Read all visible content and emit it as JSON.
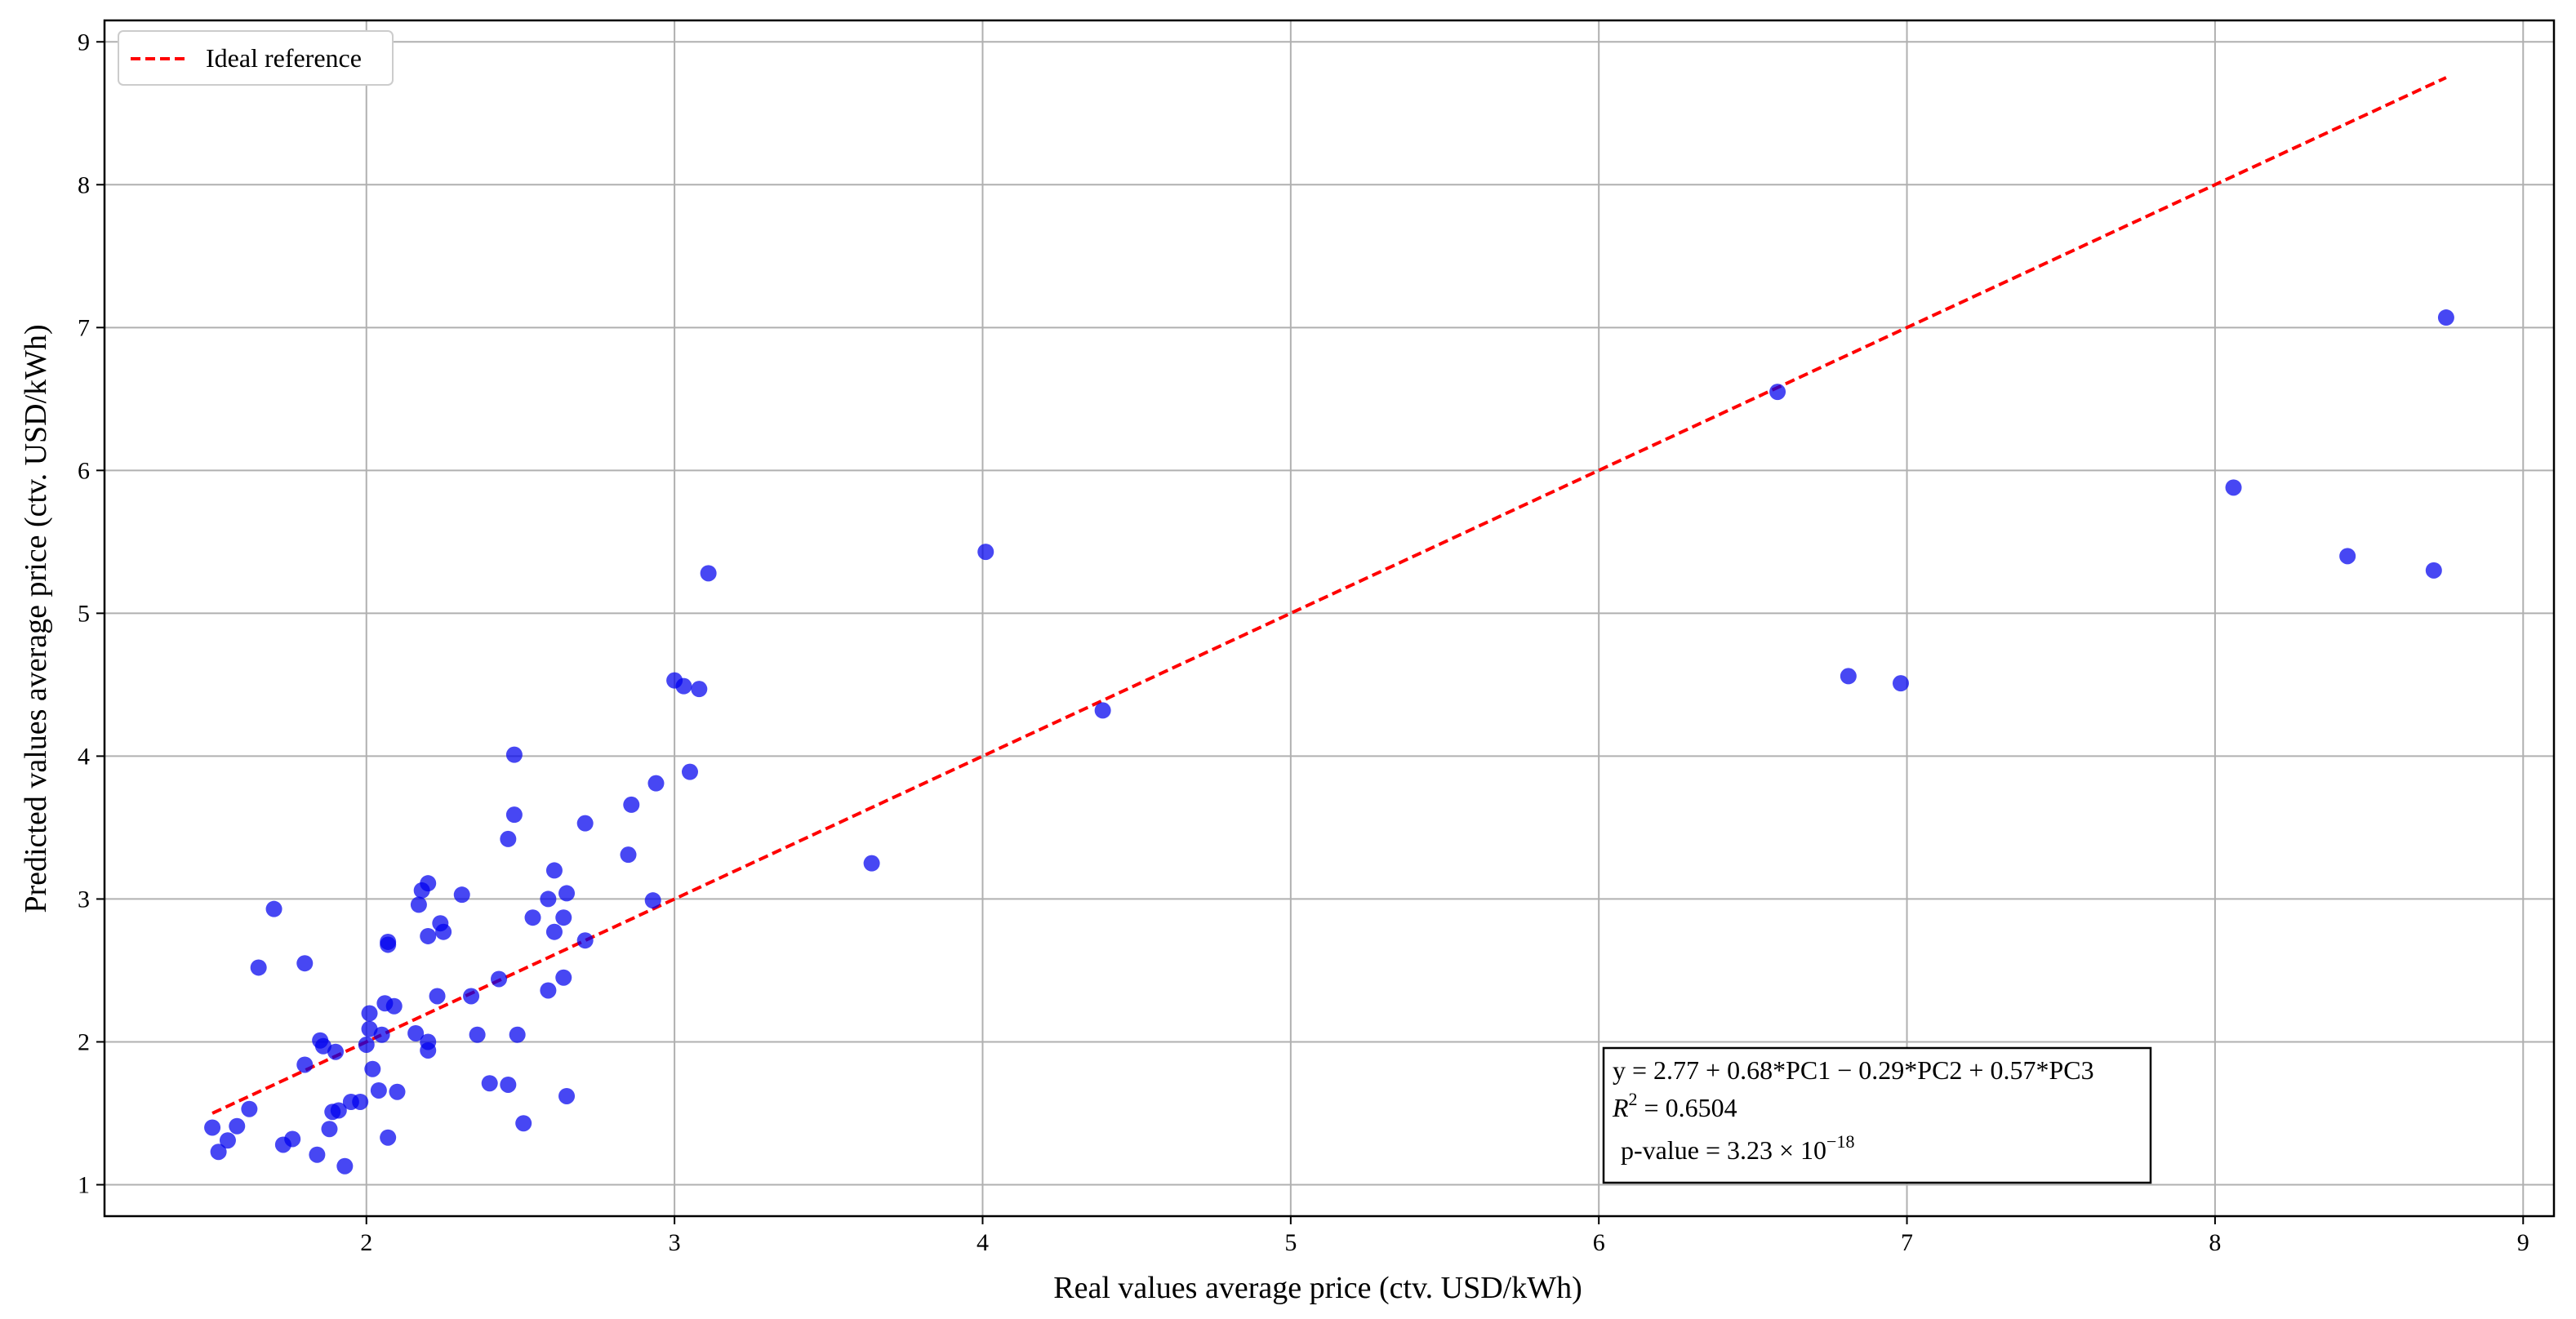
{
  "chart_data": {
    "type": "scatter",
    "xlabel": "Real values average price (ctv. USD/kWh)",
    "ylabel": "Predicted values average price (ctv. USD/kWh)",
    "xlim": [
      1.15,
      9.1
    ],
    "ylim": [
      0.78,
      9.15
    ],
    "xticks": [
      "2",
      "3",
      "4",
      "5",
      "6",
      "7",
      "8",
      "9"
    ],
    "yticks": [
      "1",
      "2",
      "3",
      "4",
      "5",
      "6",
      "7",
      "8",
      "9"
    ],
    "grid": true,
    "legend_position": "top-left",
    "point_color": "#0000ee",
    "reference_color": "#ff0000",
    "reference_line": {
      "name": "Ideal reference",
      "style": "dashed",
      "x": [
        1.5,
        8.75
      ],
      "y": [
        1.5,
        8.75
      ]
    },
    "annotation": {
      "equation": "y = 2.77 + 0.68*PC1 − 0.29*PC2 + 0.57*PC3",
      "r2_symbol": "R",
      "r2_superscript": "2",
      "r2_value": " = 0.6504",
      "pvalue_prefix": "p-value = 3.23 × 10",
      "pvalue_exponent": "−18"
    },
    "points": [
      {
        "x": 1.5,
        "y": 1.4
      },
      {
        "x": 1.52,
        "y": 1.23
      },
      {
        "x": 1.55,
        "y": 1.31
      },
      {
        "x": 1.58,
        "y": 1.41
      },
      {
        "x": 1.62,
        "y": 1.53
      },
      {
        "x": 1.65,
        "y": 2.52
      },
      {
        "x": 1.7,
        "y": 2.93
      },
      {
        "x": 1.73,
        "y": 1.28
      },
      {
        "x": 1.76,
        "y": 1.32
      },
      {
        "x": 1.8,
        "y": 2.55
      },
      {
        "x": 1.8,
        "y": 1.84
      },
      {
        "x": 1.84,
        "y": 1.21
      },
      {
        "x": 1.85,
        "y": 2.01
      },
      {
        "x": 1.86,
        "y": 1.97
      },
      {
        "x": 1.88,
        "y": 1.39
      },
      {
        "x": 1.89,
        "y": 1.51
      },
      {
        "x": 1.9,
        "y": 1.93
      },
      {
        "x": 1.91,
        "y": 1.52
      },
      {
        "x": 1.93,
        "y": 1.13
      },
      {
        "x": 1.95,
        "y": 1.58
      },
      {
        "x": 1.98,
        "y": 1.58
      },
      {
        "x": 2.0,
        "y": 1.98
      },
      {
        "x": 2.01,
        "y": 2.2
      },
      {
        "x": 2.01,
        "y": 2.09
      },
      {
        "x": 2.02,
        "y": 1.81
      },
      {
        "x": 2.04,
        "y": 1.66
      },
      {
        "x": 2.05,
        "y": 2.05
      },
      {
        "x": 2.06,
        "y": 2.27
      },
      {
        "x": 2.07,
        "y": 2.7
      },
      {
        "x": 2.07,
        "y": 2.68
      },
      {
        "x": 2.07,
        "y": 1.33
      },
      {
        "x": 2.09,
        "y": 2.25
      },
      {
        "x": 2.1,
        "y": 1.65
      },
      {
        "x": 2.16,
        "y": 2.06
      },
      {
        "x": 2.17,
        "y": 2.96
      },
      {
        "x": 2.18,
        "y": 3.06
      },
      {
        "x": 2.2,
        "y": 3.11
      },
      {
        "x": 2.2,
        "y": 2.74
      },
      {
        "x": 2.2,
        "y": 2.0
      },
      {
        "x": 2.2,
        "y": 1.94
      },
      {
        "x": 2.23,
        "y": 2.32
      },
      {
        "x": 2.24,
        "y": 2.83
      },
      {
        "x": 2.25,
        "y": 2.77
      },
      {
        "x": 2.31,
        "y": 3.03
      },
      {
        "x": 2.34,
        "y": 2.32
      },
      {
        "x": 2.36,
        "y": 2.05
      },
      {
        "x": 2.4,
        "y": 1.71
      },
      {
        "x": 2.43,
        "y": 2.44
      },
      {
        "x": 2.46,
        "y": 3.42
      },
      {
        "x": 2.46,
        "y": 1.7
      },
      {
        "x": 2.48,
        "y": 4.01
      },
      {
        "x": 2.48,
        "y": 3.59
      },
      {
        "x": 2.49,
        "y": 2.05
      },
      {
        "x": 2.51,
        "y": 1.43
      },
      {
        "x": 2.54,
        "y": 2.87
      },
      {
        "x": 2.59,
        "y": 3.0
      },
      {
        "x": 2.59,
        "y": 2.36
      },
      {
        "x": 2.61,
        "y": 3.2
      },
      {
        "x": 2.61,
        "y": 2.77
      },
      {
        "x": 2.64,
        "y": 2.87
      },
      {
        "x": 2.64,
        "y": 2.45
      },
      {
        "x": 2.65,
        "y": 1.62
      },
      {
        "x": 2.65,
        "y": 3.04
      },
      {
        "x": 2.71,
        "y": 3.53
      },
      {
        "x": 2.71,
        "y": 2.71
      },
      {
        "x": 2.85,
        "y": 3.31
      },
      {
        "x": 2.86,
        "y": 3.66
      },
      {
        "x": 2.93,
        "y": 2.99
      },
      {
        "x": 2.94,
        "y": 3.81
      },
      {
        "x": 3.0,
        "y": 4.53
      },
      {
        "x": 3.03,
        "y": 4.49
      },
      {
        "x": 3.05,
        "y": 3.89
      },
      {
        "x": 3.08,
        "y": 4.47
      },
      {
        "x": 3.11,
        "y": 5.28
      },
      {
        "x": 3.64,
        "y": 3.25
      },
      {
        "x": 4.01,
        "y": 5.43
      },
      {
        "x": 4.39,
        "y": 4.32
      },
      {
        "x": 6.58,
        "y": 6.55
      },
      {
        "x": 6.81,
        "y": 4.56
      },
      {
        "x": 6.98,
        "y": 4.51
      },
      {
        "x": 8.06,
        "y": 5.88
      },
      {
        "x": 8.43,
        "y": 5.4
      },
      {
        "x": 8.71,
        "y": 5.3
      },
      {
        "x": 8.75,
        "y": 7.07
      }
    ]
  }
}
